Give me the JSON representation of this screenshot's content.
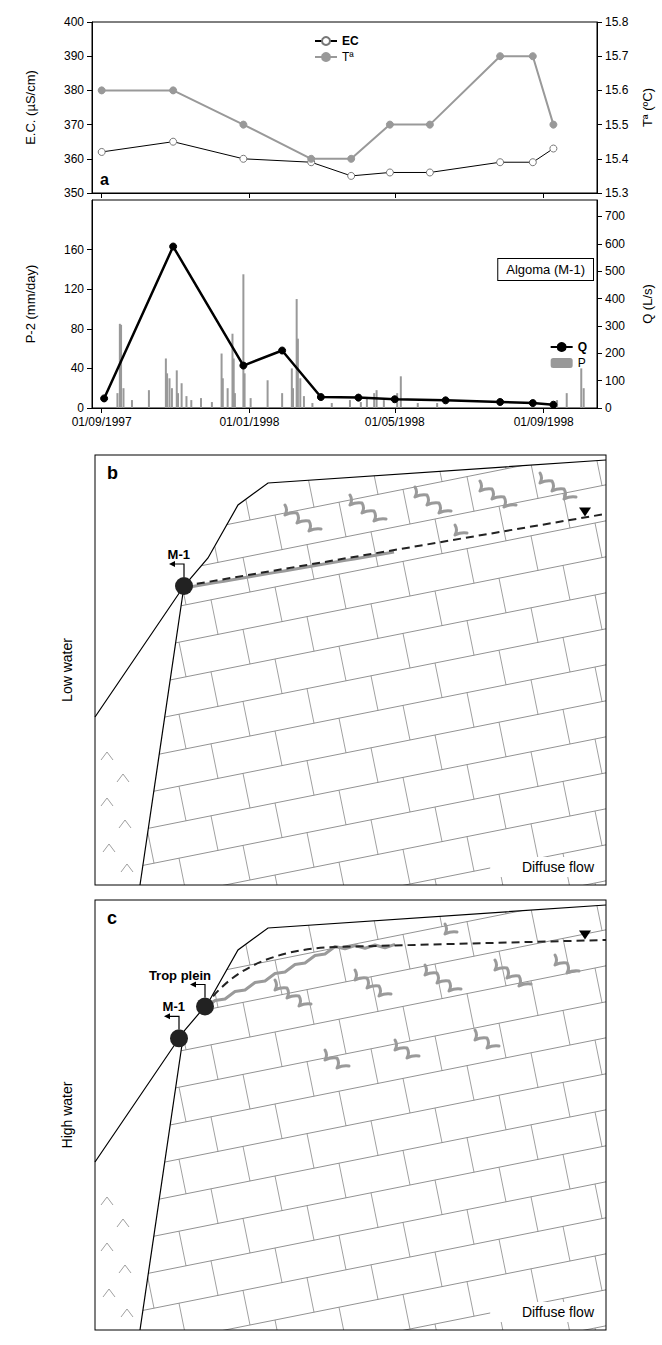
{
  "chart_data": [
    {
      "type": "line",
      "annotations": [
        "a"
      ],
      "x": [
        "1997-09-01",
        "1997-10-30",
        "1997-12-27",
        "1998-02-21",
        "1998-03-26",
        "1998-04-27",
        "1998-05-30",
        "1998-07-27",
        "1998-08-23",
        "1998-09-09"
      ],
      "xlim": [
        "1997-08-24",
        "1998-10-15"
      ],
      "xticks": [
        {
          "value": "1997-09-01",
          "label": "01/09/1997"
        },
        {
          "value": "1998-01-01",
          "label": "01/01/1998"
        },
        {
          "value": "1998-05-01",
          "label": "01/05/1998"
        },
        {
          "value": "1998-09-01",
          "label": "01/09/1998"
        }
      ],
      "ylim": [
        350,
        400
      ],
      "yticks": [
        350,
        360,
        370,
        380,
        390,
        400
      ],
      "y2lim": [
        15.3,
        15.8
      ],
      "y2ticks": [
        15.3,
        15.4,
        15.5,
        15.6,
        15.7,
        15.8
      ],
      "ylabel": "E.C. (µS/cm)",
      "y2label": "Tª (ºC)",
      "legend": "top",
      "grid": false,
      "tick_labels": "y",
      "series": [
        {
          "name": "EC",
          "color": "#000000",
          "marker": "open_circle",
          "values": [
            362,
            365,
            360,
            359,
            355,
            356,
            356,
            359,
            359,
            363
          ]
        },
        {
          "name": "Tª",
          "color": "#999999",
          "marker": "circle",
          "axis": "y2",
          "values": [
            15.6,
            15.6,
            15.5,
            15.4,
            15.4,
            15.5,
            15.5,
            15.7,
            15.7,
            15.5
          ]
        }
      ]
    },
    {
      "type": "line",
      "annotations": [
        "Algoma (M-1)"
      ],
      "xlim": [
        "1997-08-24",
        "1998-10-15"
      ],
      "xticks": [
        {
          "value": "1997-09-01",
          "label": "01/09/1997"
        },
        {
          "value": "1998-01-01",
          "label": "01/01/1998"
        },
        {
          "value": "1998-05-01",
          "label": "01/05/1998"
        },
        {
          "value": "1998-09-01",
          "label": "01/09/1998"
        }
      ],
      "ylim": [
        0,
        210
      ],
      "yticks": [
        0,
        40,
        80,
        120,
        160
      ],
      "y2lim": [
        0,
        760
      ],
      "y2ticks": [
        0,
        100,
        200,
        300,
        400,
        500,
        600,
        700
      ],
      "ylabel": "P-2 (mm/day)",
      "y2label": "Q (L/s)",
      "legend": "bottom-right",
      "grid": false,
      "series": [
        {
          "name": "Q",
          "type": "line",
          "color": "#000000",
          "marker": "circle",
          "axis": "y2",
          "x": [
            "1997-09-03",
            "1997-10-30",
            "1997-12-27",
            "1998-01-28",
            "1998-03-01",
            "1998-04-01",
            "1998-05-01",
            "1998-06-12",
            "1998-07-27",
            "1998-08-23",
            "1998-09-09"
          ],
          "values": [
            35,
            590,
            155,
            210,
            40,
            38,
            32,
            28,
            22,
            18,
            12
          ]
        },
        {
          "name": "P",
          "type": "bar",
          "color": "#999999",
          "x": [
            "1997-09-14",
            "1997-09-16",
            "1997-09-17",
            "1997-09-19",
            "1997-09-26",
            "1997-10-10",
            "1997-10-24",
            "1997-10-25",
            "1997-10-27",
            "1997-10-29",
            "1997-11-02",
            "1997-11-03",
            "1997-11-06",
            "1997-11-10",
            "1997-11-14",
            "1997-11-22",
            "1997-12-01",
            "1997-12-09",
            "1997-12-10",
            "1997-12-14",
            "1997-12-18",
            "1997-12-19",
            "1997-12-20",
            "1997-12-27",
            "1997-12-28",
            "1998-01-02",
            "1998-01-16",
            "1998-01-28",
            "1998-02-05",
            "1998-02-06",
            "1998-02-09",
            "1998-02-10",
            "1998-02-12",
            "1998-02-15",
            "1998-02-22",
            "1998-03-10",
            "1998-03-25",
            "1998-04-03",
            "1998-04-08",
            "1998-04-14",
            "1998-04-16",
            "1998-04-22",
            "1998-05-03",
            "1998-05-06",
            "1998-05-20",
            "1998-06-05",
            "1998-09-12",
            "1998-09-20",
            "1998-10-02",
            "1998-10-04"
          ],
          "values": [
            15,
            85,
            84,
            20,
            8,
            18,
            50,
            35,
            30,
            20,
            38,
            15,
            25,
            12,
            8,
            10,
            6,
            55,
            30,
            20,
            75,
            50,
            15,
            135,
            35,
            10,
            28,
            15,
            40,
            20,
            110,
            70,
            30,
            12,
            5,
            5,
            8,
            6,
            10,
            15,
            18,
            8,
            15,
            32,
            5,
            5,
            8,
            15,
            40,
            20
          ]
        }
      ]
    }
  ],
  "diagrams": [
    {
      "panel": "b",
      "state": "Low water",
      "springs": [
        "M-1"
      ],
      "flow": "Diffuse flow"
    },
    {
      "panel": "c",
      "state": "High water",
      "springs": [
        "M-1",
        "Trop plein"
      ],
      "flow": "Diffuse flow"
    }
  ]
}
